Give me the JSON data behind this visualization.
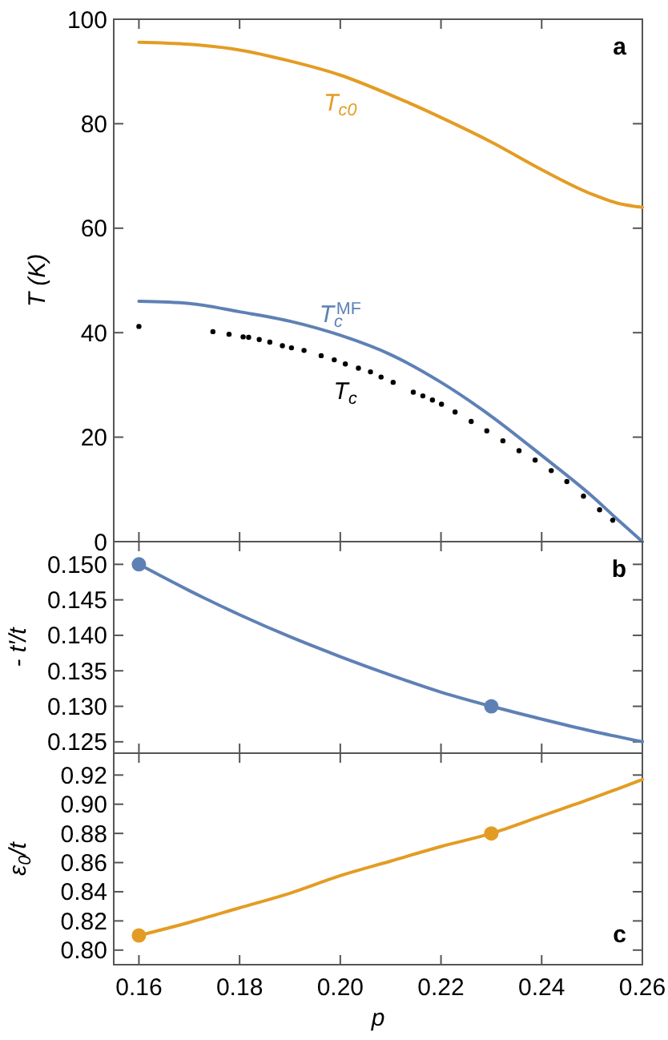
{
  "chart_data": [
    {
      "type": "line",
      "ylabel": "T (K)",
      "xlim": [
        0.155,
        0.26
      ],
      "ylim": [
        0,
        100
      ],
      "xticks": [
        0.16,
        0.18,
        0.2,
        0.22,
        0.24,
        0.26
      ],
      "yticks": [
        0,
        20,
        40,
        60,
        80,
        100
      ],
      "tick_labels": "y",
      "annotations": [
        "a"
      ],
      "x": [
        0.16,
        0.17,
        0.18,
        0.19,
        0.2,
        0.21,
        0.22,
        0.23,
        0.24,
        0.25,
        0.255,
        0.26
      ],
      "series": [
        {
          "name": "T$_{c0}$",
          "color": "#e39c23",
          "values": [
            95.6,
            95.2,
            94.1,
            92,
            89.3,
            85.5,
            81.2,
            76.5,
            71.2,
            66.5,
            64.8,
            64
          ]
        },
        {
          "name": "T$_{c}$$^{MF}$",
          "color": "#5e81b5",
          "values": [
            46,
            45.6,
            44,
            42.2,
            39.5,
            35.8,
            30.5,
            24,
            16.5,
            8.7,
            4.3,
            0
          ]
        },
        {
          "name": "T$_{c}$",
          "type": "scatter",
          "color": "#000000",
          "x": [
            0.16,
            0.1747,
            0.1779,
            0.1807,
            0.1818,
            0.1839,
            0.186,
            0.1885,
            0.1903,
            0.1928,
            0.1962,
            0.1988,
            0.201,
            0.2036,
            0.206,
            0.2081,
            0.2105,
            0.2145,
            0.2164,
            0.2183,
            0.2201,
            0.2228,
            0.226,
            0.2291,
            0.2323,
            0.2355,
            0.2387,
            0.2419,
            0.245,
            0.2483,
            0.2515,
            0.2541
          ],
          "values": [
            41.2,
            40.2,
            39.7,
            39.2,
            39.1,
            38.7,
            38.2,
            37.5,
            37.1,
            36.6,
            35.6,
            34.8,
            34,
            33.2,
            32.5,
            31.5,
            30.5,
            28.6,
            27.9,
            27.1,
            26.3,
            24.8,
            23,
            21.2,
            19.3,
            17.4,
            15.6,
            13.6,
            11.5,
            8.7,
            6.1,
            4.1
          ]
        }
      ]
    },
    {
      "type": "line",
      "ylabel": "- t′/t",
      "xlim": [
        0.155,
        0.26
      ],
      "ylim": [
        0.1234,
        0.1532
      ],
      "xticks": [
        0.16,
        0.18,
        0.2,
        0.22,
        0.24,
        0.26
      ],
      "yticks": [
        {
          "value": 0.125,
          "label": "0.125"
        },
        {
          "value": 0.13,
          "label": "0.130"
        },
        {
          "value": 0.135,
          "label": "0.135"
        },
        {
          "value": 0.14,
          "label": "0.140"
        },
        {
          "value": 0.145,
          "label": "0.145"
        },
        {
          "value": 0.15,
          "label": "0.150"
        }
      ],
      "tick_labels": "y",
      "annotations": [
        "b"
      ],
      "x": [
        0.16,
        0.17,
        0.18,
        0.19,
        0.2,
        0.21,
        0.22,
        0.23,
        0.24,
        0.25,
        0.26
      ],
      "series": [
        {
          "color": "#5e81b5",
          "values": [
            0.15,
            0.1463,
            0.1429,
            0.1398,
            0.137,
            0.1344,
            0.132,
            0.13,
            0.1282,
            0.1265,
            0.125
          ]
        },
        {
          "type": "scatter",
          "color": "#5e81b5",
          "x": [
            0.16,
            0.23
          ],
          "values": [
            0.15,
            0.13
          ]
        }
      ]
    },
    {
      "type": "line",
      "ylabel": "ε$_{0}$/t",
      "xlabel": "p",
      "xlim": [
        0.155,
        0.26
      ],
      "ylim": [
        0.79,
        0.935
      ],
      "xticks": [
        0.16,
        0.18,
        {
          "value": 0.2,
          "label": "0.20"
        },
        0.22,
        0.24,
        0.26
      ],
      "yticks": [
        {
          "value": 0.8,
          "label": "0.80"
        },
        0.82,
        0.84,
        0.86,
        0.88,
        {
          "value": 0.9,
          "label": "0.90"
        },
        0.92
      ],
      "annotations": [
        "c"
      ],
      "x": [
        0.16,
        0.17,
        0.18,
        0.19,
        0.2,
        0.21,
        0.22,
        0.23,
        0.24,
        0.25,
        0.26
      ],
      "series": [
        {
          "color": "#e39c23",
          "values": [
            0.81,
            0.819,
            0.829,
            0.839,
            0.851,
            0.861,
            0.871,
            0.88,
            0.892,
            0.904,
            0.917
          ]
        },
        {
          "type": "scatter",
          "color": "#e39c23",
          "x": [
            0.16,
            0.23
          ],
          "values": [
            0.81,
            0.88
          ]
        }
      ]
    }
  ]
}
